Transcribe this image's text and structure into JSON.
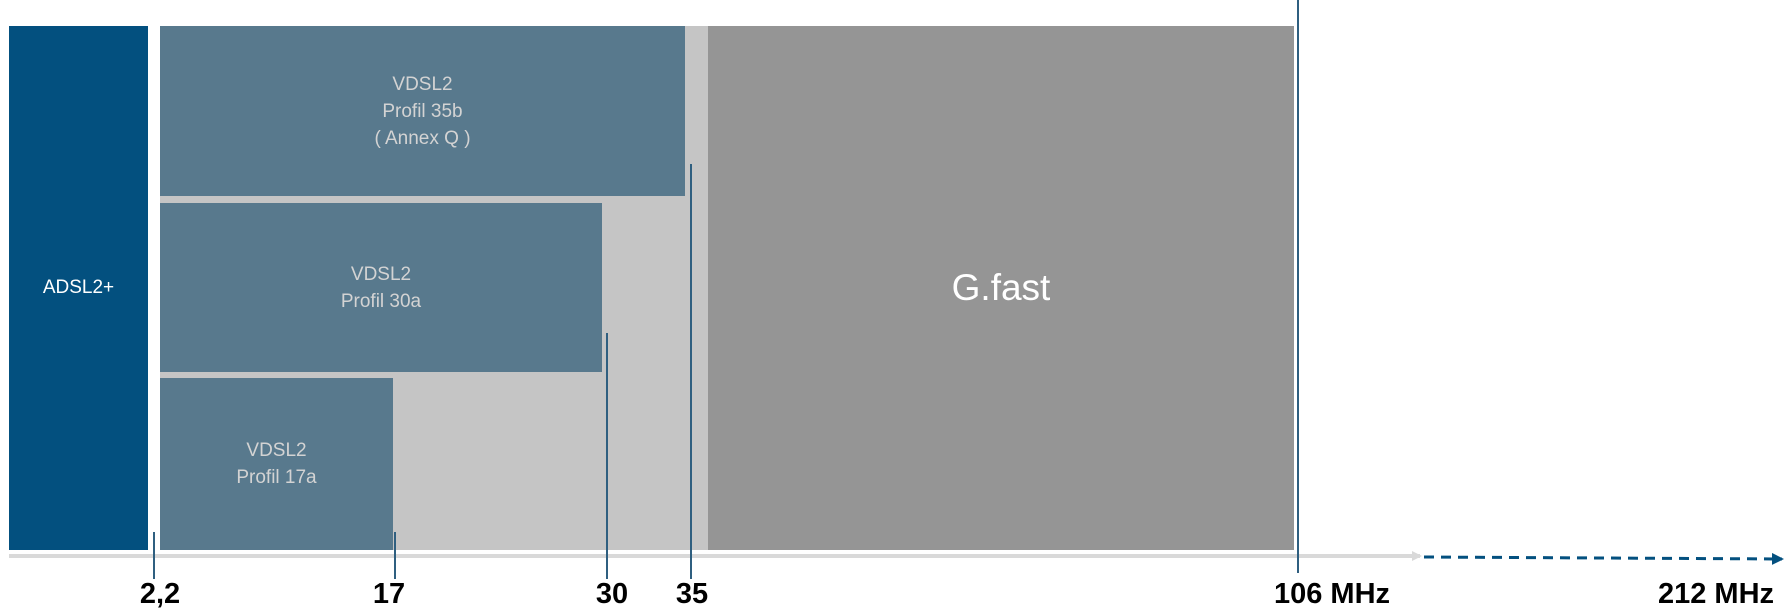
{
  "blocks": {
    "adsl": {
      "label": "ADSL2+"
    },
    "vdsl35b": {
      "lines": [
        "VDSL2",
        "Profil 35b",
        "( Annex Q )"
      ]
    },
    "vdsl30a": {
      "lines": [
        "VDSL2",
        "Profil 30a"
      ]
    },
    "vdsl17a": {
      "lines": [
        "VDSL2",
        "Profil 17a"
      ]
    },
    "gfast": {
      "label": "G.fast"
    }
  },
  "axis": {
    "ticks": [
      "2,2",
      "17",
      "30",
      "35",
      "106 MHz",
      "212 MHz"
    ]
  },
  "colors": {
    "adsl": "#03507f",
    "vdsl": "#58798d",
    "vdsl_background": "#c5c5c5",
    "gfast": "#959595",
    "axis_line": "#d9d9d9",
    "marker": "#2f5f80",
    "dashed_extension": "#03507f"
  }
}
